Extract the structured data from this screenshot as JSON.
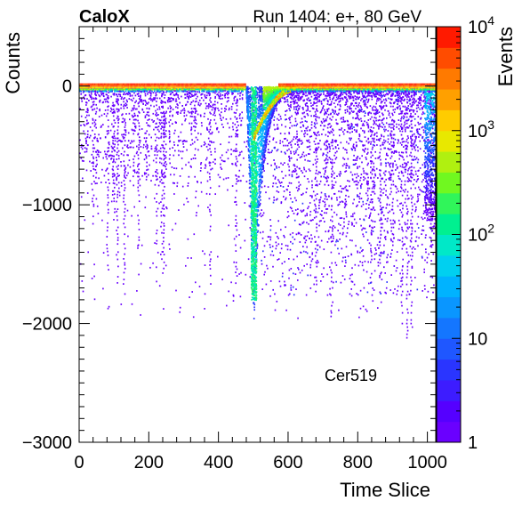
{
  "header": {
    "experiment": "CaloX",
    "run_info": "Run 1404: e+, 80 GeV"
  },
  "annotation": "Cer519",
  "chart_data": {
    "type": "heatmap",
    "xlabel": "Time Slice",
    "ylabel": "Counts",
    "zlabel": "Events",
    "xlim": [
      0,
      1024
    ],
    "ylim": [
      -3000,
      500
    ],
    "z_scale": "log",
    "zlim": [
      1,
      10000
    ],
    "x_ticks": [
      0,
      200,
      400,
      600,
      800,
      1000
    ],
    "x_tick_labels": [
      "0",
      "200",
      "400",
      "600",
      "800",
      "1000"
    ],
    "y_ticks": [
      0,
      -1000,
      -2000,
      -3000
    ],
    "y_tick_labels": [
      "0",
      "−1000",
      "−2000",
      "−3000"
    ],
    "z_ticks": [
      {
        "value": 1,
        "label": "1"
      },
      {
        "value": 10,
        "label": "10"
      },
      {
        "value": 100,
        "label": "10",
        "exp": "2"
      },
      {
        "value": 1000,
        "label": "10",
        "exp": "3"
      },
      {
        "value": 10000,
        "label": "10",
        "exp": "4"
      }
    ],
    "features": {
      "baseline_counts": 0,
      "pulse_start_slice": 478,
      "pulse_peak_slice": 500,
      "pulse_peak_counts": -2000,
      "pulse_recovery_slice": 620,
      "noise_tail_min_counts": -1950,
      "pretrigger_spike_min_counts": -1550
    },
    "palette": [
      "#6a00ff",
      "#5500ff",
      "#3d1cff",
      "#2a35ff",
      "#1f57ff",
      "#1476ff",
      "#0a96ff",
      "#00b3ff",
      "#00d0f0",
      "#00e8c8",
      "#00f090",
      "#30f55a",
      "#70f820",
      "#b0f010",
      "#e8e800",
      "#ffcc00",
      "#ffa000",
      "#ff7a00",
      "#ff4c00",
      "#ff1a00"
    ]
  }
}
